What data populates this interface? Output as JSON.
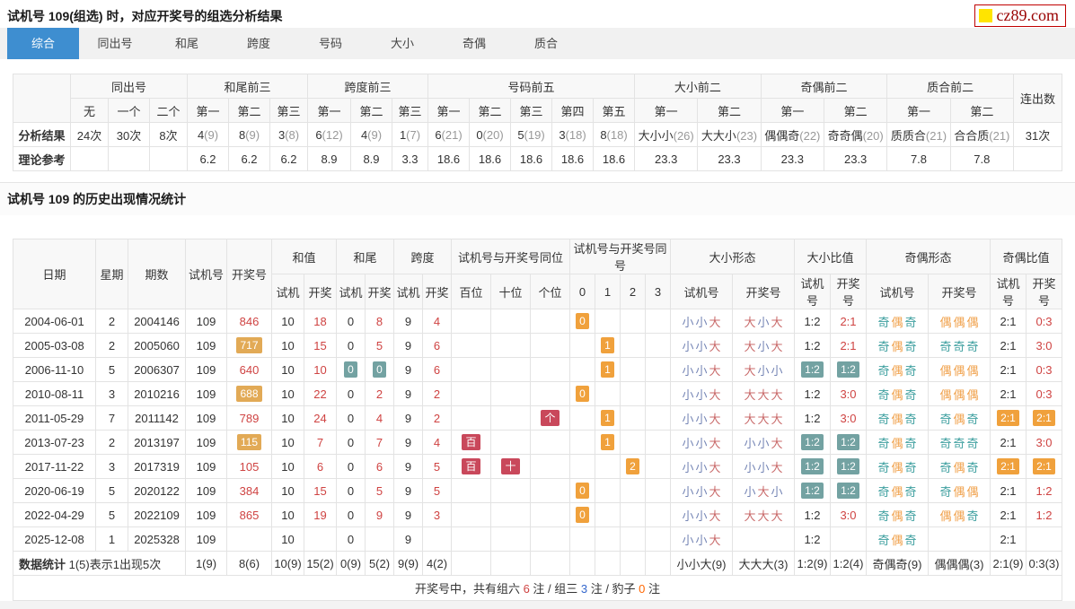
{
  "header": {
    "title": "试机号 109(组选) 时，对应开奖号的组选分析结果",
    "logo_text": "cz89.com"
  },
  "tabs": [
    {
      "label": "综合",
      "active": true
    },
    {
      "label": "同出号",
      "active": false
    },
    {
      "label": "和尾",
      "active": false
    },
    {
      "label": "跨度",
      "active": false
    },
    {
      "label": "号码",
      "active": false
    },
    {
      "label": "大小",
      "active": false
    },
    {
      "label": "奇偶",
      "active": false
    },
    {
      "label": "质合",
      "active": false
    }
  ],
  "colors": {
    "tab_active": "#3e8ed0",
    "red_text": "#cf4342",
    "badge_orange": "#f0a13c",
    "badge_tan": "#e2aa56",
    "badge_teal": "#73a2a2",
    "badge_red": "#c9485b",
    "big_red": "#c96a6a",
    "small_blue": "#7585b5",
    "odd_teal": "#3fa0a0",
    "even_orange": "#f0a04a",
    "footer_blue": "#3366cc",
    "footer_orange": "#ff6600",
    "logo_red": "#990000",
    "logo_yellow": "#ffe400"
  },
  "analysis": {
    "header_row1": [
      {
        "t": "",
        "rowspan": 2
      },
      {
        "t": "同出号",
        "colspan": 3
      },
      {
        "t": "和尾前三",
        "colspan": 3
      },
      {
        "t": "跨度前三",
        "colspan": 3
      },
      {
        "t": "号码前五",
        "colspan": 5
      },
      {
        "t": "大小前二",
        "colspan": 2
      },
      {
        "t": "奇偶前二",
        "colspan": 2
      },
      {
        "t": "质合前二",
        "colspan": 2
      },
      {
        "t": "连出数",
        "rowspan": 2
      }
    ],
    "header_row2": [
      "无",
      "一个",
      "二个",
      "第一",
      "第二",
      "第三",
      "第一",
      "第二",
      "第三",
      "第一",
      "第二",
      "第三",
      "第四",
      "第五",
      "第一",
      "第二",
      "第一",
      "第二",
      "第一",
      "第二"
    ],
    "rows": [
      {
        "label": "分析结果",
        "cells": [
          "24次",
          "30次",
          "8次",
          {
            "t": "4",
            "p": "(9)"
          },
          {
            "t": "8",
            "p": "(9)"
          },
          {
            "t": "3",
            "p": "(8)"
          },
          {
            "t": "6",
            "p": "(12)"
          },
          {
            "t": "4",
            "p": "(9)"
          },
          {
            "t": "1",
            "p": "(7)"
          },
          {
            "t": "6",
            "p": "(21)"
          },
          {
            "t": "0",
            "p": "(20)"
          },
          {
            "t": "5",
            "p": "(19)"
          },
          {
            "t": "3",
            "p": "(18)"
          },
          {
            "t": "8",
            "p": "(18)"
          },
          {
            "t": "大小小",
            "p": "(26)"
          },
          {
            "t": "大大小",
            "p": "(23)"
          },
          {
            "t": "偶偶奇",
            "p": "(22)"
          },
          {
            "t": "奇奇偶",
            "p": "(20)"
          },
          {
            "t": "质质合",
            "p": "(21)"
          },
          {
            "t": "合合质",
            "p": "(21)"
          },
          "31次"
        ]
      },
      {
        "label": "理论参考",
        "cells": [
          "",
          "",
          "",
          "6.2",
          "6.2",
          "6.2",
          "8.9",
          "8.9",
          "3.3",
          "18.6",
          "18.6",
          "18.6",
          "18.6",
          "18.6",
          "23.3",
          "23.3",
          "23.3",
          "23.3",
          "7.8",
          "7.8",
          ""
        ]
      }
    ]
  },
  "history": {
    "title": "试机号 109 的历史出现情况统计",
    "header_row1": [
      {
        "t": "日期",
        "rowspan": 2
      },
      {
        "t": "星期",
        "rowspan": 2
      },
      {
        "t": "期数",
        "rowspan": 2
      },
      {
        "t": "试机号",
        "rowspan": 2
      },
      {
        "t": "开奖号",
        "rowspan": 2
      },
      {
        "t": "和值",
        "colspan": 2
      },
      {
        "t": "和尾",
        "colspan": 2
      },
      {
        "t": "跨度",
        "colspan": 2
      },
      {
        "t": "试机号与开奖号同位",
        "colspan": 3
      },
      {
        "t": "试机号与开奖号同号",
        "colspan": 4
      },
      {
        "t": "大小形态",
        "colspan": 2
      },
      {
        "t": "大小比值",
        "colspan": 2
      },
      {
        "t": "奇偶形态",
        "colspan": 2
      },
      {
        "t": "奇偶比值",
        "colspan": 2
      }
    ],
    "header_row2": [
      "试机",
      "开奖",
      "试机",
      "开奖",
      "试机",
      "开奖",
      "百位",
      "十位",
      "个位",
      "0",
      "1",
      "2",
      "3",
      "试机号",
      "开奖号",
      "试机号",
      "开奖号",
      "试机号",
      "开奖号",
      "试机号",
      "开奖号"
    ],
    "rows": [
      [
        "2004-06-01",
        "2",
        "2004146",
        "109",
        {
          "t": "846",
          "s": "red"
        },
        "10",
        {
          "t": "18",
          "s": "red"
        },
        "0",
        {
          "t": "8",
          "s": "red"
        },
        "9",
        {
          "t": "4",
          "s": "red"
        },
        "",
        "",
        "",
        {
          "t": "0",
          "s": "b-orange"
        },
        "",
        "",
        "",
        {
          "t": "小小大",
          "s": "ch"
        },
        {
          "t": "大小大",
          "s": "ch"
        },
        "1:2",
        {
          "t": "2:1",
          "s": "red"
        },
        {
          "t": "奇偶奇",
          "s": "ch"
        },
        {
          "t": "偶偶偶",
          "s": "ch"
        },
        "2:1",
        {
          "t": "0:3",
          "s": "red"
        }
      ],
      [
        "2005-03-08",
        "2",
        "2005060",
        "109",
        {
          "t": "717",
          "s": "b-tan"
        },
        "10",
        {
          "t": "15",
          "s": "red"
        },
        "0",
        {
          "t": "5",
          "s": "red"
        },
        "9",
        {
          "t": "6",
          "s": "red"
        },
        "",
        "",
        "",
        "",
        {
          "t": "1",
          "s": "b-orange"
        },
        "",
        "",
        {
          "t": "小小大",
          "s": "ch"
        },
        {
          "t": "大小大",
          "s": "ch"
        },
        "1:2",
        {
          "t": "2:1",
          "s": "red"
        },
        {
          "t": "奇偶奇",
          "s": "ch"
        },
        {
          "t": "奇奇奇",
          "s": "ch"
        },
        "2:1",
        {
          "t": "3:0",
          "s": "red"
        }
      ],
      [
        "2006-11-10",
        "5",
        "2006307",
        "109",
        {
          "t": "640",
          "s": "red"
        },
        "10",
        {
          "t": "10",
          "s": "red"
        },
        {
          "t": "0",
          "s": "b-teal"
        },
        {
          "t": "0",
          "s": "b-teal"
        },
        "9",
        {
          "t": "6",
          "s": "red"
        },
        "",
        "",
        "",
        "",
        {
          "t": "1",
          "s": "b-orange"
        },
        "",
        "",
        {
          "t": "小小大",
          "s": "ch"
        },
        {
          "t": "大小小",
          "s": "ch"
        },
        {
          "t": "1:2",
          "s": "b-teal"
        },
        {
          "t": "1:2",
          "s": "b-teal"
        },
        {
          "t": "奇偶奇",
          "s": "ch"
        },
        {
          "t": "偶偶偶",
          "s": "ch"
        },
        "2:1",
        {
          "t": "0:3",
          "s": "red"
        }
      ],
      [
        "2010-08-11",
        "3",
        "2010216",
        "109",
        {
          "t": "688",
          "s": "b-tan"
        },
        "10",
        {
          "t": "22",
          "s": "red"
        },
        "0",
        {
          "t": "2",
          "s": "red"
        },
        "9",
        {
          "t": "2",
          "s": "red"
        },
        "",
        "",
        "",
        {
          "t": "0",
          "s": "b-orange"
        },
        "",
        "",
        "",
        {
          "t": "小小大",
          "s": "ch"
        },
        {
          "t": "大大大",
          "s": "ch"
        },
        "1:2",
        {
          "t": "3:0",
          "s": "red"
        },
        {
          "t": "奇偶奇",
          "s": "ch"
        },
        {
          "t": "偶偶偶",
          "s": "ch"
        },
        "2:1",
        {
          "t": "0:3",
          "s": "red"
        }
      ],
      [
        "2011-05-29",
        "7",
        "2011142",
        "109",
        {
          "t": "789",
          "s": "red"
        },
        "10",
        {
          "t": "24",
          "s": "red"
        },
        "0",
        {
          "t": "4",
          "s": "red"
        },
        "9",
        {
          "t": "2",
          "s": "red"
        },
        "",
        "",
        {
          "t": "个",
          "s": "b-red"
        },
        "",
        {
          "t": "1",
          "s": "b-orange"
        },
        "",
        "",
        {
          "t": "小小大",
          "s": "ch"
        },
        {
          "t": "大大大",
          "s": "ch"
        },
        "1:2",
        {
          "t": "3:0",
          "s": "red"
        },
        {
          "t": "奇偶奇",
          "s": "ch"
        },
        {
          "t": "奇偶奇",
          "s": "ch"
        },
        {
          "t": "2:1",
          "s": "b-orange"
        },
        {
          "t": "2:1",
          "s": "b-orange"
        }
      ],
      [
        "2013-07-23",
        "2",
        "2013197",
        "109",
        {
          "t": "115",
          "s": "b-tan"
        },
        "10",
        {
          "t": "7",
          "s": "red"
        },
        "0",
        {
          "t": "7",
          "s": "red"
        },
        "9",
        {
          "t": "4",
          "s": "red"
        },
        {
          "t": "百",
          "s": "b-red"
        },
        "",
        "",
        "",
        {
          "t": "1",
          "s": "b-orange"
        },
        "",
        "",
        {
          "t": "小小大",
          "s": "ch"
        },
        {
          "t": "小小大",
          "s": "ch"
        },
        {
          "t": "1:2",
          "s": "b-teal"
        },
        {
          "t": "1:2",
          "s": "b-teal"
        },
        {
          "t": "奇偶奇",
          "s": "ch"
        },
        {
          "t": "奇奇奇",
          "s": "ch"
        },
        "2:1",
        {
          "t": "3:0",
          "s": "red"
        }
      ],
      [
        "2017-11-22",
        "3",
        "2017319",
        "109",
        {
          "t": "105",
          "s": "red"
        },
        "10",
        {
          "t": "6",
          "s": "red"
        },
        "0",
        {
          "t": "6",
          "s": "red"
        },
        "9",
        {
          "t": "5",
          "s": "red"
        },
        {
          "t": "百",
          "s": "b-red"
        },
        {
          "t": "十",
          "s": "b-red"
        },
        "",
        "",
        "",
        {
          "t": "2",
          "s": "b-orange"
        },
        "",
        {
          "t": "小小大",
          "s": "ch"
        },
        {
          "t": "小小大",
          "s": "ch"
        },
        {
          "t": "1:2",
          "s": "b-teal"
        },
        {
          "t": "1:2",
          "s": "b-teal"
        },
        {
          "t": "奇偶奇",
          "s": "ch"
        },
        {
          "t": "奇偶奇",
          "s": "ch"
        },
        {
          "t": "2:1",
          "s": "b-orange"
        },
        {
          "t": "2:1",
          "s": "b-orange"
        }
      ],
      [
        "2020-06-19",
        "5",
        "2020122",
        "109",
        {
          "t": "384",
          "s": "red"
        },
        "10",
        {
          "t": "15",
          "s": "red"
        },
        "0",
        {
          "t": "5",
          "s": "red"
        },
        "9",
        {
          "t": "5",
          "s": "red"
        },
        "",
        "",
        "",
        {
          "t": "0",
          "s": "b-orange"
        },
        "",
        "",
        "",
        {
          "t": "小小大",
          "s": "ch"
        },
        {
          "t": "小大小",
          "s": "ch"
        },
        {
          "t": "1:2",
          "s": "b-teal"
        },
        {
          "t": "1:2",
          "s": "b-teal"
        },
        {
          "t": "奇偶奇",
          "s": "ch"
        },
        {
          "t": "奇偶偶",
          "s": "ch"
        },
        "2:1",
        {
          "t": "1:2",
          "s": "red"
        }
      ],
      [
        "2022-04-29",
        "5",
        "2022109",
        "109",
        {
          "t": "865",
          "s": "red"
        },
        "10",
        {
          "t": "19",
          "s": "red"
        },
        "0",
        {
          "t": "9",
          "s": "red"
        },
        "9",
        {
          "t": "3",
          "s": "red"
        },
        "",
        "",
        "",
        {
          "t": "0",
          "s": "b-orange"
        },
        "",
        "",
        "",
        {
          "t": "小小大",
          "s": "ch"
        },
        {
          "t": "大大大",
          "s": "ch"
        },
        "1:2",
        {
          "t": "3:0",
          "s": "red"
        },
        {
          "t": "奇偶奇",
          "s": "ch"
        },
        {
          "t": "偶偶奇",
          "s": "ch"
        },
        "2:1",
        {
          "t": "1:2",
          "s": "red"
        }
      ],
      [
        "2025-12-08",
        "1",
        "2025328",
        "109",
        "",
        "10",
        "",
        "0",
        "",
        "9",
        "",
        "",
        "",
        "",
        "",
        "",
        "",
        "",
        {
          "t": "小小大",
          "s": "ch"
        },
        "",
        "1:2",
        "",
        {
          "t": "奇偶奇",
          "s": "ch"
        },
        "",
        "2:1",
        ""
      ]
    ],
    "stats_row": {
      "label_bold": "数据统计",
      "label_rest": " 1(5)表示1出现5次",
      "cells": [
        "1(9)",
        "8(6)",
        "10(9)",
        "15(2)",
        "0(9)",
        "5(2)",
        "9(9)",
        "4(2)",
        "",
        "",
        "",
        "",
        "",
        "",
        "",
        "小小大(9)",
        "大大大(3)",
        "1:2(9)",
        "1:2(4)",
        "奇偶奇(9)",
        "偶偶偶(3)",
        "2:1(9)",
        "0:3(3)"
      ]
    },
    "footer_segments": [
      {
        "t": "开奖号中，共有组六 "
      },
      {
        "t": "6",
        "s": "f-red"
      },
      {
        "t": " 注 / 组三 "
      },
      {
        "t": "3",
        "s": "f-blue"
      },
      {
        "t": " 注 / 豹子 "
      },
      {
        "t": "0",
        "s": "f-orange"
      },
      {
        "t": " 注"
      }
    ]
  }
}
